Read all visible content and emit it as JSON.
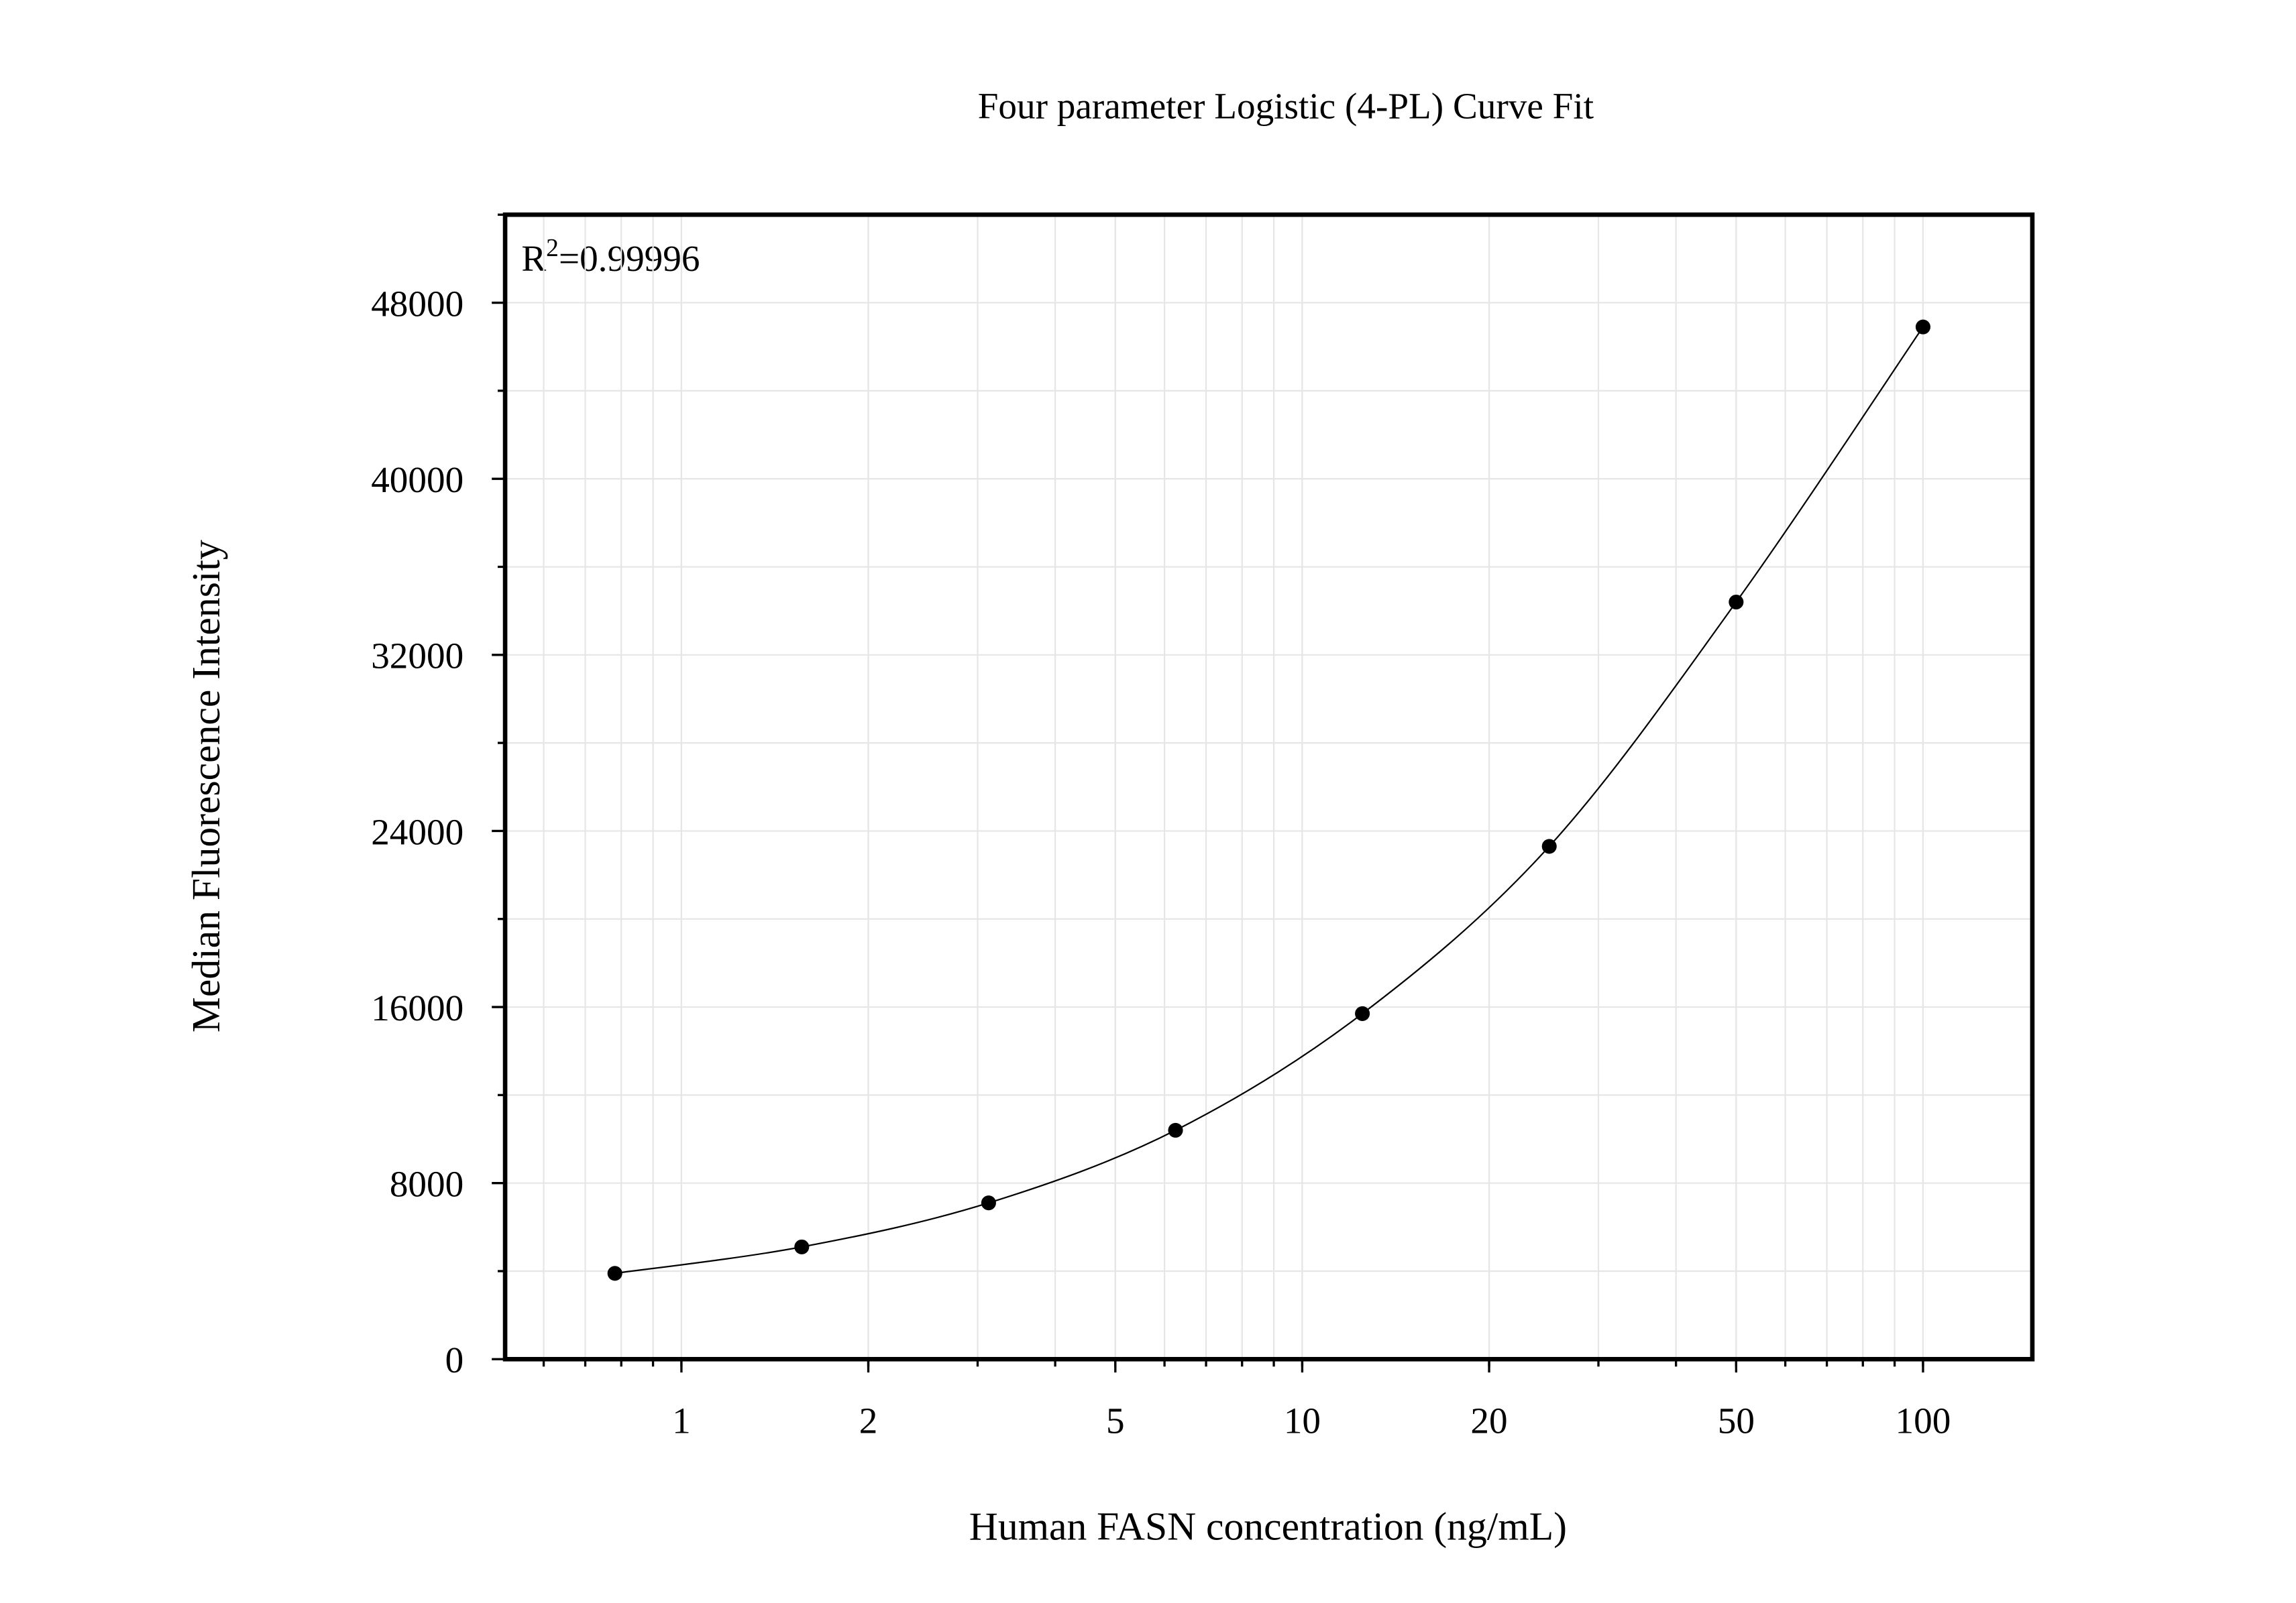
{
  "chart_data": {
    "type": "scatter",
    "title": "Four parameter Logistic (4-PL) Curve Fit",
    "x_label": "Human FASN concentration (ng/mL)",
    "y_label": "Median Fluorescence Intensity",
    "annotation": {
      "base": "R",
      "superscript": "2",
      "rest": "=0.99996"
    },
    "x": [
      0.78125,
      1.5625,
      3.125,
      6.25,
      12.5,
      25,
      50,
      100
    ],
    "series": [
      {
        "color": "#000000",
        "values": [
          3900,
          5100,
          7100,
          10400,
          15700,
          23300,
          34400,
          46900
        ]
      }
    ],
    "fit_line": true,
    "xscale": "log",
    "xlim": [
      0.52,
      150
    ],
    "xticks": [
      1,
      2,
      5,
      10,
      20,
      50,
      100
    ],
    "ylim": [
      0,
      52000
    ],
    "yticks": [
      0,
      8000,
      16000,
      24000,
      32000,
      40000,
      48000
    ],
    "grid": true
  }
}
